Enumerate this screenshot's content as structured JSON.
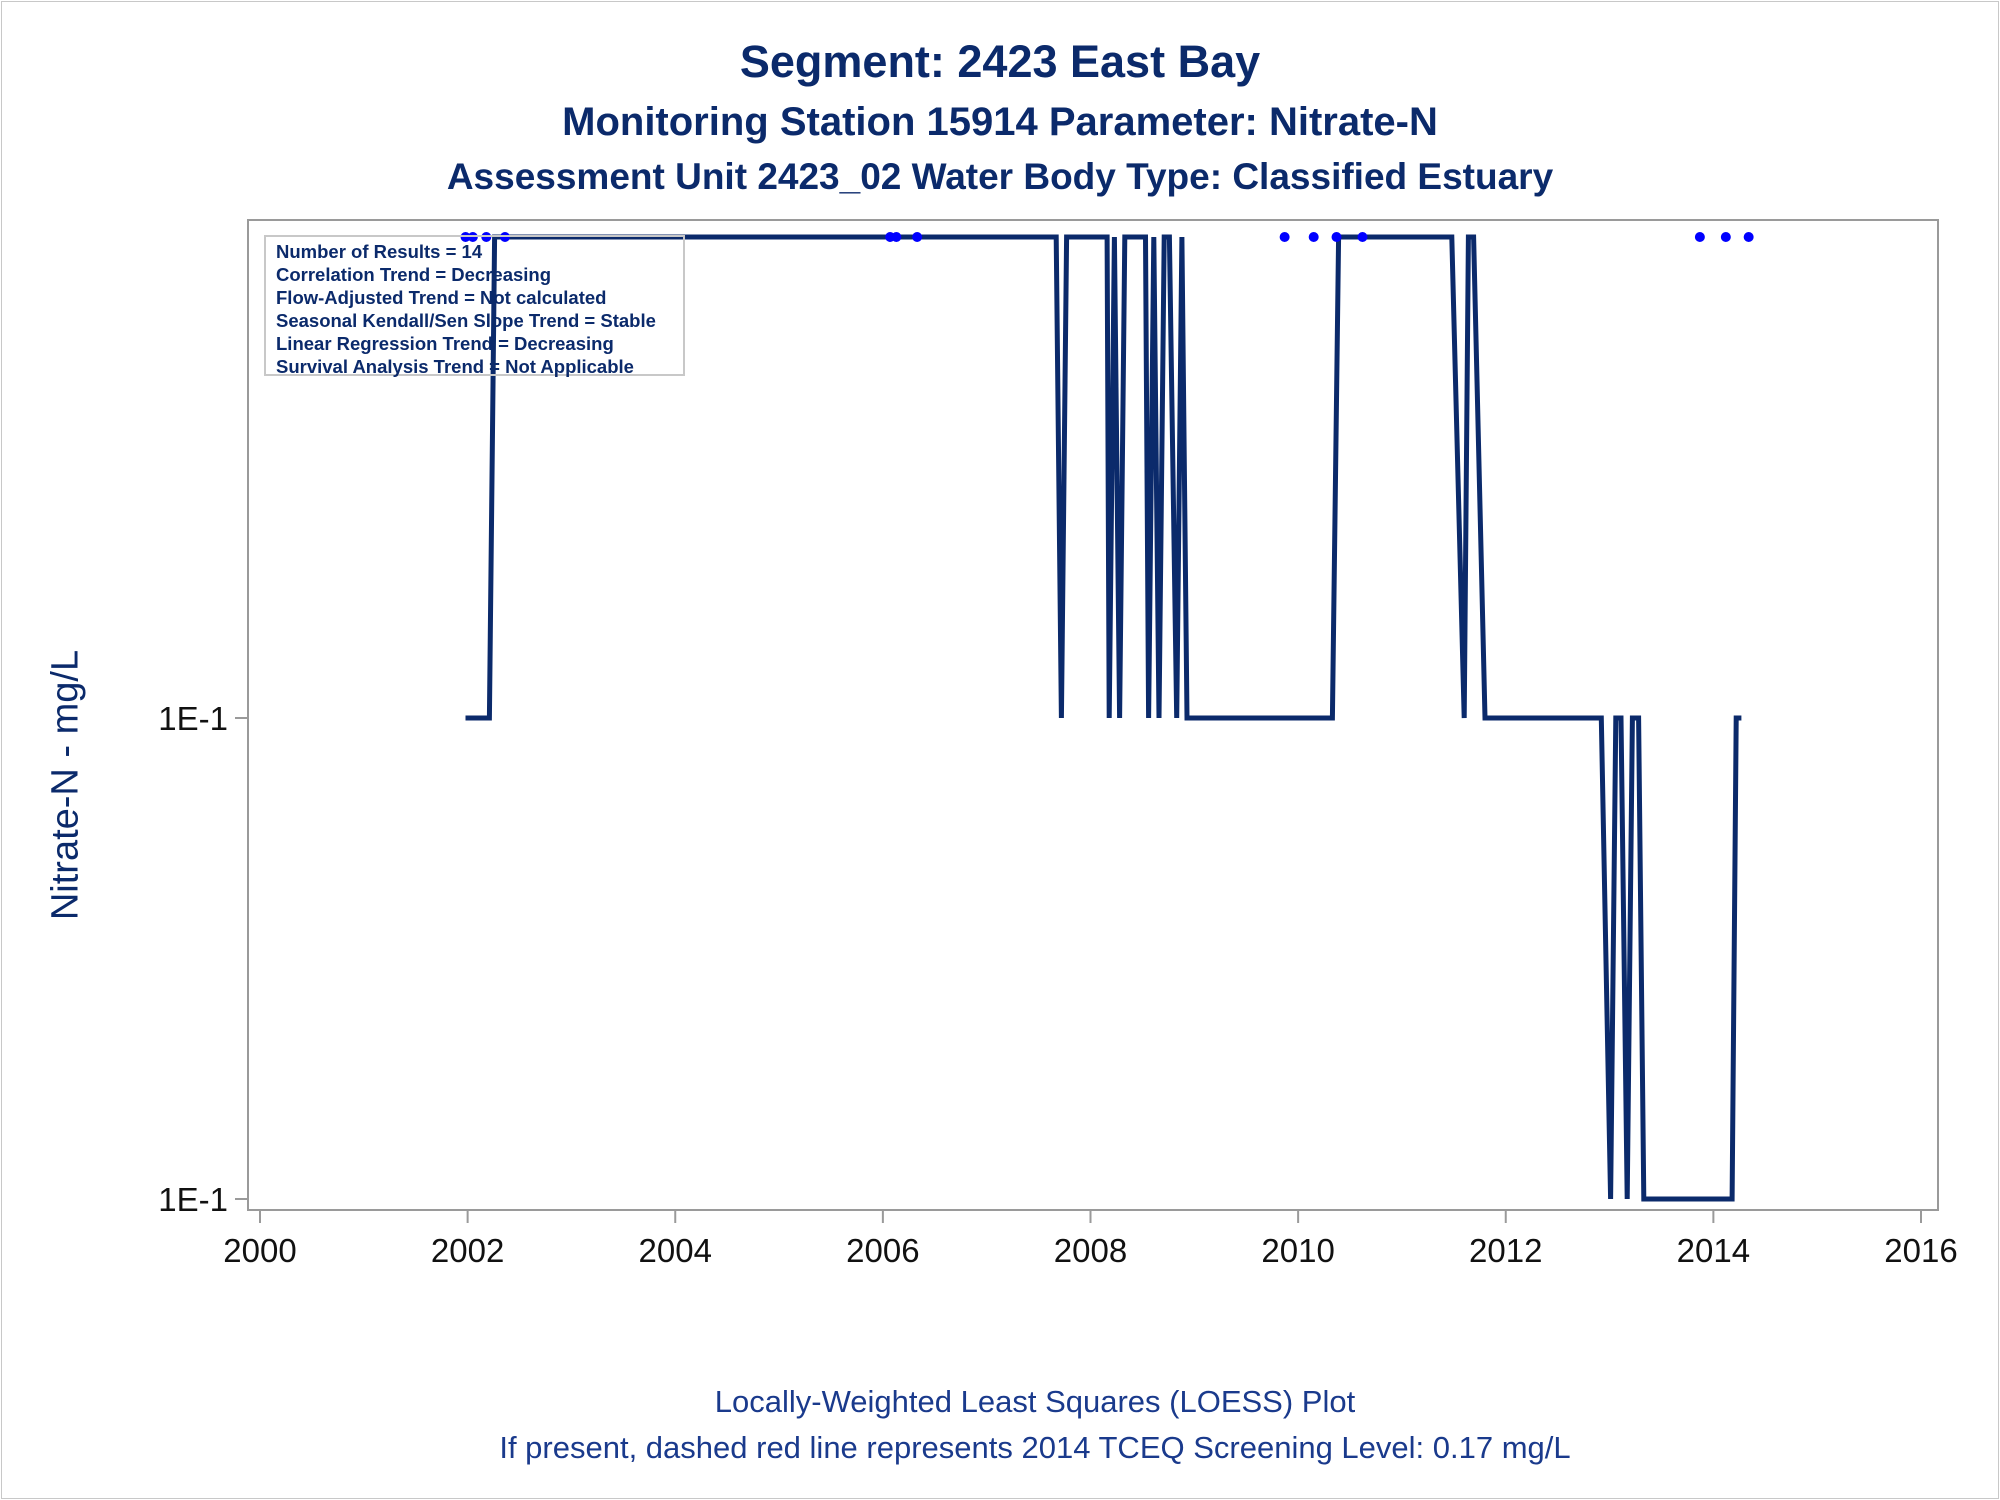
{
  "titles": {
    "line1": "Segment: 2423  East Bay",
    "line2": "Monitoring Station 15914 Parameter: Nitrate-N",
    "line3": "Assessment Unit 2423_02   Water Body Type: Classified Estuary"
  },
  "footer": {
    "line1": "Locally-Weighted Least Squares (LOESS) Plot",
    "line2": "If present, dashed red line represents 2014 TCEQ Screening Level: 0.17 mg/L"
  },
  "stats_box": [
    "Number of Results = 14",
    "Correlation Trend = Decreasing",
    "Flow-Adjusted Trend = Not calculated",
    "Seasonal Kendall/Sen Slope Trend = Stable",
    "Linear Regression Trend = Decreasing",
    "Survival Analysis Trend = Not Applicable"
  ],
  "colors": {
    "title": "#0b2a6b",
    "line": "#0b2a6b",
    "points": "#0000ff",
    "axis": "#9a9a9a"
  },
  "chart_data": {
    "type": "line",
    "title": "Segment: 2423  East Bay",
    "xlabel": "",
    "ylabel": "Nitrate-N - mg/L",
    "x_ticks": [
      2000,
      2002,
      2004,
      2006,
      2008,
      2010,
      2012,
      2014,
      2016
    ],
    "y_ticks": [
      "1E-1",
      "1E-1"
    ],
    "y_scale": "log",
    "xlim": [
      2000,
      2016
    ],
    "grid": false,
    "legend": "none",
    "series": [
      {
        "kind": "loess-line",
        "x": [
          2001.98,
          2002.21,
          2002.26,
          2007.67,
          2007.72,
          2007.77,
          2008.16,
          2008.18,
          2008.23,
          2008.28,
          2008.33,
          2008.53,
          2008.56,
          2008.61,
          2008.66,
          2008.71,
          2008.76,
          2008.83,
          2008.88,
          2008.93,
          2008.98,
          2010.33,
          2010.39,
          2011.48,
          2011.6,
          2011.64,
          2011.69,
          2011.8,
          2011.85,
          2012.92,
          2013.01,
          2013.06,
          2013.11,
          2013.17,
          2013.22,
          2013.28,
          2013.33,
          2014.18,
          2014.22,
          2014.27
        ],
        "y": [
          0.1,
          0.1,
          0.4,
          0.4,
          0.1,
          0.4,
          0.4,
          0.1,
          0.4,
          0.1,
          0.4,
          0.4,
          0.1,
          0.4,
          0.1,
          0.4,
          0.4,
          0.1,
          0.4,
          0.1,
          0.1,
          0.1,
          0.4,
          0.4,
          0.1,
          0.4,
          0.4,
          0.1,
          0.1,
          0.1,
          0.025,
          0.1,
          0.1,
          0.025,
          0.1,
          0.1,
          0.025,
          0.025,
          0.1,
          0.1
        ]
      },
      {
        "kind": "points",
        "x": [
          2001.98,
          2002.05,
          2002.18,
          2002.36,
          2006.07,
          2006.13,
          2006.33,
          2009.87,
          2010.15,
          2010.37,
          2010.62,
          2013.87,
          2014.12,
          2014.34
        ],
        "y": [
          0.4,
          0.4,
          0.4,
          0.4,
          0.4,
          0.4,
          0.4,
          0.4,
          0.4,
          0.4,
          0.4,
          0.4,
          0.4,
          0.4
        ]
      }
    ]
  }
}
